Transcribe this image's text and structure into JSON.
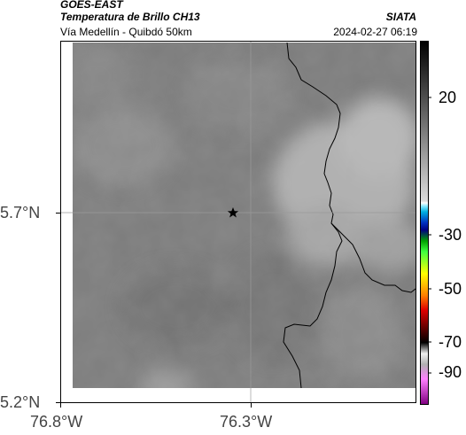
{
  "header": {
    "satellite": "GOES-EAST",
    "product": "Temperatura de Brillo CH13",
    "region": "Vía Medellín - Quibdó 50km",
    "org": "SIATA",
    "timestamp": "2024-02-27 06:19"
  },
  "axes": {
    "y_ticks": [
      {
        "label": "5.7°N"
      },
      {
        "label": "5.2°N"
      }
    ],
    "x_ticks": [
      {
        "label": "76.8°W"
      },
      {
        "label": "76.3°W"
      }
    ]
  },
  "colorbar": {
    "ticks": [
      "20",
      "-30",
      "-50",
      "-70",
      "-90"
    ]
  },
  "map": {
    "marker_icon": "star-icon",
    "background_gray": "#787878",
    "cloud_gray": "#b4b4b4"
  }
}
